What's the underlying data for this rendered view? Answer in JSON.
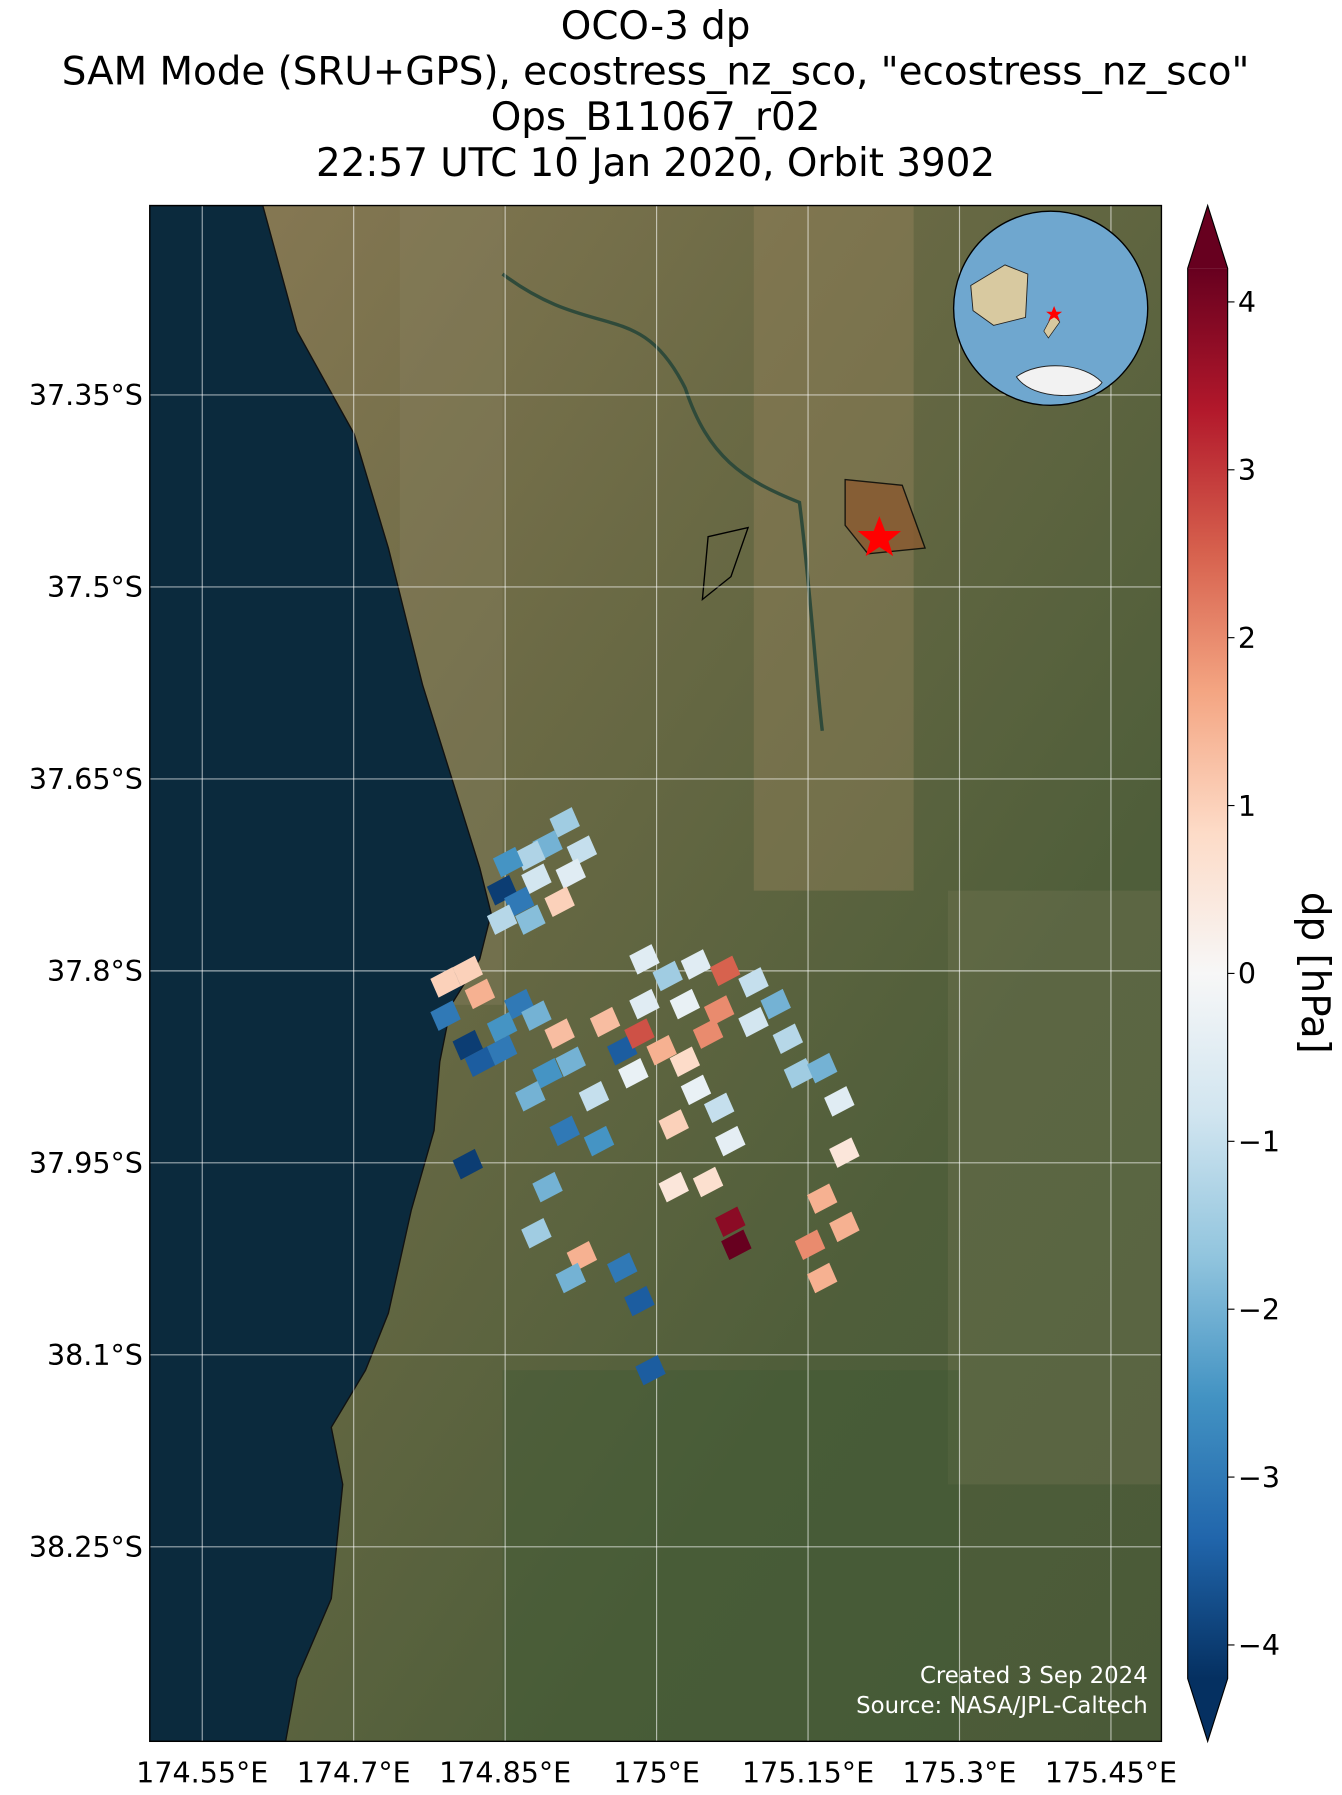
{
  "chart_data": {
    "type": "map",
    "title_lines": [
      "OCO-3 dp",
      "SAM Mode (SRU+GPS), ecostress_nz_sco, \"ecostress_nz_sco\"",
      "Ops_B11067_r02",
      "22:57 UTC 10 Jan 2020, Orbit 3902"
    ],
    "xlim": [
      174.498,
      175.5
    ],
    "ylim": [
      -38.402,
      -37.202
    ],
    "xticks": [
      {
        "value": 174.55,
        "label": "174.55°E"
      },
      {
        "value": 174.7,
        "label": "174.7°E"
      },
      {
        "value": 174.85,
        "label": "174.85°E"
      },
      {
        "value": 175.0,
        "label": "175°E"
      },
      {
        "value": 175.15,
        "label": "175.15°E"
      },
      {
        "value": 175.3,
        "label": "175.3°E"
      },
      {
        "value": 175.45,
        "label": "175.45°E"
      }
    ],
    "yticks": [
      {
        "value": -37.35,
        "label": "37.35°S"
      },
      {
        "value": -37.5,
        "label": "37.5°S"
      },
      {
        "value": -37.65,
        "label": "37.65°S"
      },
      {
        "value": -37.8,
        "label": "37.8°S"
      },
      {
        "value": -37.95,
        "label": "37.95°S"
      },
      {
        "value": -38.1,
        "label": "38.1°S"
      },
      {
        "value": -38.25,
        "label": "38.25°S"
      }
    ],
    "grid": true,
    "colormap": "RdBu_r",
    "clim": [
      -4.2,
      4.2
    ],
    "cticks": [
      {
        "value": -4,
        "label": "−4"
      },
      {
        "value": -3,
        "label": "−3"
      },
      {
        "value": -2,
        "label": "−2"
      },
      {
        "value": -1,
        "label": "−1"
      },
      0,
      1,
      2,
      3,
      4
    ],
    "colorbar_label": "dp [hPa]",
    "credits": [
      "Created 3 Sep 2024",
      "Source: NASA/JPL-Caltech"
    ],
    "soundings": {
      "lon": [
        174.909,
        174.892,
        174.926,
        174.875,
        174.915,
        174.853,
        174.881,
        174.847,
        174.864,
        174.904,
        174.847,
        174.875,
        174.791,
        174.813,
        174.825,
        174.791,
        174.847,
        174.813,
        174.825,
        174.813,
        174.864,
        174.881,
        174.847,
        174.904,
        174.892,
        174.875,
        174.915,
        174.938,
        174.909,
        174.943,
        174.892,
        174.881,
        174.926,
        174.966,
        174.983,
        174.915,
        174.949,
        174.966,
        174.983,
        174.988,
        174.977,
        175.005,
        175.028,
        175.051,
        175.039,
        175.017,
        175.062,
        175.017,
        175.051,
        175.073,
        175.073,
        175.079,
        174.994,
        174.988,
        175.011,
        175.039,
        175.068,
        175.096,
        175.028,
        175.062,
        175.096,
        175.13,
        175.141,
        175.164,
        175.118,
        175.181,
        175.186,
        175.164,
        175.186,
        175.152,
        175.164
      ],
      "lat": [
        -37.684,
        -37.702,
        -37.706,
        -37.71,
        -37.724,
        -37.715,
        -37.728,
        -37.737,
        -37.746,
        -37.746,
        -37.76,
        -37.76,
        -37.809,
        -37.8,
        -37.818,
        -37.835,
        -37.844,
        -37.858,
        -37.871,
        -37.951,
        -37.826,
        -37.835,
        -37.862,
        -37.849,
        -37.88,
        -37.898,
        -37.871,
        -37.898,
        -37.925,
        -37.933,
        -37.969,
        -38.005,
        -38.023,
        -38.032,
        -38.058,
        -38.04,
        -37.84,
        -37.862,
        -37.849,
        -37.826,
        -37.88,
        -37.862,
        -37.871,
        -37.849,
        -37.893,
        -37.92,
        -37.907,
        -37.969,
        -37.965,
        -37.933,
        -37.996,
        -38.014,
        -38.112,
        -37.791,
        -37.804,
        -37.795,
        -37.8,
        -37.809,
        -37.826,
        -37.831,
        -37.84,
        -37.853,
        -37.88,
        -37.876,
        -37.826,
        -37.902,
        -37.942,
        -37.978,
        -38.0,
        -38.014,
        -38.04
      ],
      "dp": [
        -1.5,
        -2,
        -1,
        -1.3,
        -0.5,
        -2.5,
        -0.8,
        -4,
        -3,
        1,
        -1.2,
        -1.8,
        1,
        1,
        1.5,
        -3,
        -2.5,
        -4,
        -3.5,
        -4,
        -3,
        -2,
        -3,
        1.3,
        -2.5,
        -2,
        -2,
        -1,
        -3,
        -2.5,
        -2,
        -1.5,
        1.5,
        -3,
        -3.5,
        -2,
        1.3,
        -3.5,
        2.7,
        -0.5,
        -0.3,
        1.5,
        0.8,
        2,
        -0.3,
        1,
        -1,
        0.5,
        0.7,
        -0.4,
        3.8,
        4.2,
        -3.5,
        -0.5,
        -1.5,
        -0.5,
        2.5,
        -1,
        -0.3,
        2,
        -0.8,
        -1.2,
        -1.5,
        -2,
        -2,
        -0.5,
        0.5,
        1.5,
        1.5,
        2,
        1.5
      ]
    }
  }
}
